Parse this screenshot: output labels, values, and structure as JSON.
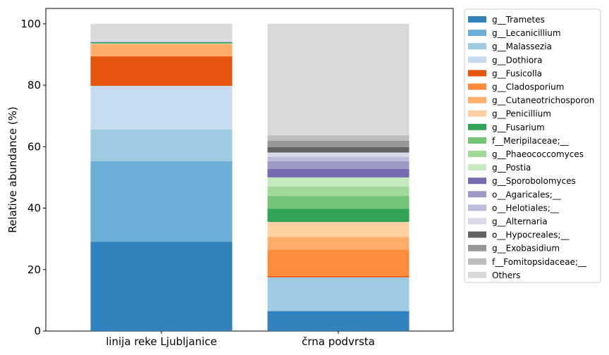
{
  "chart_data": {
    "type": "bar",
    "stacked": true,
    "ylabel": "Relative abundance (%)",
    "ylim": [
      0,
      105
    ],
    "yticks": [
      0,
      20,
      40,
      60,
      80,
      100
    ],
    "grid": false,
    "legend_position": "right-outside",
    "categories": [
      "linija reke Ljubljanice",
      "črna podvrsta"
    ],
    "series": [
      {
        "name": "g__Trametes",
        "color": "#3182bd",
        "values": [
          29.0,
          6.5
        ]
      },
      {
        "name": "g__Lecanicillium",
        "color": "#6baed6",
        "values": [
          26.3,
          0.0
        ]
      },
      {
        "name": "g__Malassezia",
        "color": "#9ecae1",
        "values": [
          10.3,
          11.0
        ]
      },
      {
        "name": "g__Dothiora",
        "color": "#c6dbef",
        "values": [
          14.2,
          0.0
        ]
      },
      {
        "name": "g__Fusicolla",
        "color": "#e6550d",
        "values": [
          9.6,
          0.4
        ]
      },
      {
        "name": "g__Cladosporium",
        "color": "#fd8d3c",
        "values": [
          0.0,
          8.6
        ]
      },
      {
        "name": "g__Cutaneotrichosporon",
        "color": "#fdae6b",
        "values": [
          3.9,
          4.1
        ]
      },
      {
        "name": "g__Penicillium",
        "color": "#fdd0a2",
        "values": [
          0.3,
          4.9
        ]
      },
      {
        "name": "g__Fusarium",
        "color": "#31a354",
        "values": [
          0.4,
          4.3
        ]
      },
      {
        "name": "f__Meripilaceae;__",
        "color": "#74c476",
        "values": [
          0.0,
          4.1
        ]
      },
      {
        "name": "g__Phaeococcomyces",
        "color": "#a1d99b",
        "values": [
          0.0,
          3.1
        ]
      },
      {
        "name": "g__Postia",
        "color": "#c7e9c0",
        "values": [
          0.0,
          3.0
        ]
      },
      {
        "name": "g__Sporobolomyces",
        "color": "#756bb1",
        "values": [
          0.0,
          2.8
        ]
      },
      {
        "name": "o__Agaricales;__",
        "color": "#9e9ac8",
        "values": [
          0.0,
          2.5
        ]
      },
      {
        "name": "o__Helotiales;__",
        "color": "#bcbddc",
        "values": [
          0.3,
          1.5
        ]
      },
      {
        "name": "g__Alternaria",
        "color": "#dadaeb",
        "values": [
          0.6,
          1.3
        ]
      },
      {
        "name": "o__Hypocreales;__",
        "color": "#636363",
        "values": [
          0.0,
          1.8
        ]
      },
      {
        "name": "g__Exobasidium",
        "color": "#969696",
        "values": [
          0.0,
          2.0
        ]
      },
      {
        "name": "f__Fomitopsidaceae;__",
        "color": "#bdbdbd",
        "values": [
          0.0,
          1.8
        ]
      },
      {
        "name": "Others",
        "color": "#d9d9d9",
        "values": [
          5.1,
          36.3
        ]
      }
    ]
  }
}
